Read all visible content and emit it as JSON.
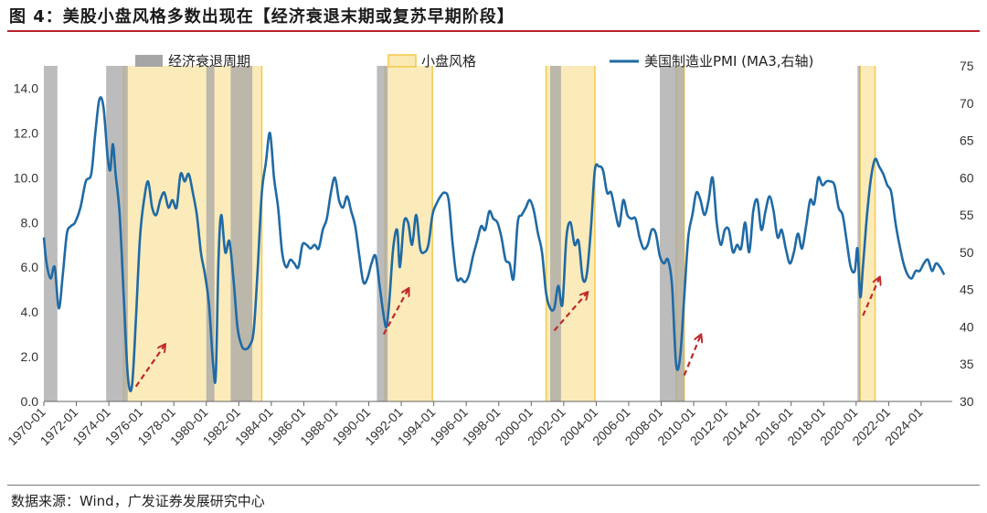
{
  "title": "图 4：美股小盘风格多数出现在【经济衰退末期或复苏早期阶段】",
  "source": "数据来源：Wind，广发证券发展研究中心",
  "colors": {
    "recession": "#a6a6a6",
    "small_cap_fill": "#fbe9b3",
    "small_cap_border": "#f2c94c",
    "pmi_line": "#1f6aa5",
    "arrow": "#c0282a",
    "title_rule": "#b8232e"
  },
  "chart_data": {
    "type": "line",
    "x_axis": {
      "range": [
        "1970-01",
        "2025-12"
      ]
    },
    "y_left": {
      "range": [
        0,
        15
      ],
      "ticks": [
        "0.0",
        "2.0",
        "4.0",
        "6.0",
        "8.0",
        "10.0",
        "12.0",
        "14.0"
      ]
    },
    "y_right": {
      "range": [
        30,
        75
      ],
      "ticks": [
        "30",
        "35",
        "40",
        "45",
        "50",
        "55",
        "60",
        "65",
        "70",
        "75"
      ]
    },
    "x_ticks": [
      "1970-01",
      "1972-01",
      "1974-01",
      "1976-01",
      "1978-01",
      "1980-01",
      "1982-01",
      "1984-01",
      "1986-01",
      "1988-01",
      "1990-01",
      "1992-01",
      "1994-01",
      "1996-01",
      "1998-01",
      "2000-01",
      "2002-01",
      "2004-01",
      "2006-01",
      "2008-01",
      "2010-01",
      "2012-01",
      "2014-01",
      "2016-01",
      "2018-01",
      "2020-01",
      "2022-01",
      "2024-01"
    ],
    "legend": [
      {
        "key": "recession",
        "label": "经济衰退周期"
      },
      {
        "key": "small_cap",
        "label": "小盘风格"
      },
      {
        "key": "pmi",
        "label": "美国制造业PMI (MA3,右轴)"
      }
    ],
    "recession_periods": [
      [
        "1970-01",
        "1970-11"
      ],
      [
        "1973-11",
        "1975-03"
      ],
      [
        "1980-01",
        "1980-07"
      ],
      [
        "1981-07",
        "1982-11"
      ],
      [
        "1990-07",
        "1991-03"
      ],
      [
        "2001-03",
        "2001-11"
      ],
      [
        "2007-12",
        "2009-06"
      ],
      [
        "2020-02",
        "2020-04"
      ]
    ],
    "small_cap_periods": [
      [
        "1974-12",
        "1983-06"
      ],
      [
        "1991-01",
        "1993-12"
      ],
      [
        "2000-12",
        "2003-12"
      ],
      [
        "2008-12",
        "2009-06"
      ],
      [
        "2020-04",
        "2021-03"
      ]
    ],
    "arrows": [
      {
        "from": [
          "1975-09",
          32.0
        ],
        "to": [
          "1977-06",
          37.5
        ]
      },
      {
        "from": [
          "1990-12",
          39.0
        ],
        "to": [
          "1992-06",
          45.0
        ]
      },
      {
        "from": [
          "2001-06",
          39.5
        ],
        "to": [
          "2003-06",
          44.5
        ]
      },
      {
        "from": [
          "2009-06",
          33.5
        ],
        "to": [
          "2010-06",
          38.8
        ]
      },
      {
        "from": [
          "2020-06",
          41.5
        ],
        "to": [
          "2021-06",
          46.5
        ]
      }
    ],
    "series": [
      {
        "key": "pmi",
        "axis": "right",
        "points": [
          [
            "1970-01",
            52.0
          ],
          [
            "1970-03",
            48.5
          ],
          [
            "1970-06",
            46.5
          ],
          [
            "1970-09",
            48.0
          ],
          [
            "1970-12",
            42.5
          ],
          [
            "1971-03",
            47.0
          ],
          [
            "1971-06",
            52.5
          ],
          [
            "1971-09",
            53.5
          ],
          [
            "1971-12",
            54.0
          ],
          [
            "1972-04",
            56.0
          ],
          [
            "1972-08",
            59.5
          ],
          [
            "1972-12",
            60.5
          ],
          [
            "1973-03",
            66.0
          ],
          [
            "1973-06",
            70.5
          ],
          [
            "1973-09",
            69.5
          ],
          [
            "1973-12",
            63.0
          ],
          [
            "1974-02",
            61.0
          ],
          [
            "1974-04",
            64.5
          ],
          [
            "1974-06",
            60.5
          ],
          [
            "1974-09",
            55.0
          ],
          [
            "1974-12",
            44.0
          ],
          [
            "1975-03",
            33.5
          ],
          [
            "1975-06",
            32.0
          ],
          [
            "1975-09",
            41.0
          ],
          [
            "1975-12",
            52.0
          ],
          [
            "1976-03",
            57.0
          ],
          [
            "1976-06",
            59.5
          ],
          [
            "1976-09",
            56.0
          ],
          [
            "1976-12",
            55.0
          ],
          [
            "1977-03",
            57.0
          ],
          [
            "1977-06",
            58.0
          ],
          [
            "1977-09",
            56.0
          ],
          [
            "1977-12",
            57.0
          ],
          [
            "1978-03",
            56.0
          ],
          [
            "1978-06",
            60.5
          ],
          [
            "1978-09",
            59.5
          ],
          [
            "1978-12",
            60.5
          ],
          [
            "1979-03",
            58.0
          ],
          [
            "1979-06",
            55.0
          ],
          [
            "1979-09",
            50.0
          ],
          [
            "1979-12",
            47.0
          ],
          [
            "1980-03",
            43.0
          ],
          [
            "1980-06",
            35.0
          ],
          [
            "1980-08",
            33.5
          ],
          [
            "1980-10",
            49.0
          ],
          [
            "1980-12",
            55.0
          ],
          [
            "1981-03",
            50.0
          ],
          [
            "1981-06",
            51.5
          ],
          [
            "1981-09",
            46.5
          ],
          [
            "1981-12",
            40.0
          ],
          [
            "1982-03",
            37.5
          ],
          [
            "1982-06",
            37.0
          ],
          [
            "1982-09",
            37.5
          ],
          [
            "1982-12",
            39.5
          ],
          [
            "1983-03",
            48.0
          ],
          [
            "1983-06",
            58.0
          ],
          [
            "1983-09",
            62.0
          ],
          [
            "1983-12",
            66.0
          ],
          [
            "1984-03",
            60.0
          ],
          [
            "1984-06",
            56.0
          ],
          [
            "1984-09",
            50.0
          ],
          [
            "1984-12",
            48.0
          ],
          [
            "1985-03",
            49.0
          ],
          [
            "1985-06",
            48.5
          ],
          [
            "1985-09",
            48.0
          ],
          [
            "1985-12",
            51.0
          ],
          [
            "1986-03",
            51.0
          ],
          [
            "1986-06",
            50.5
          ],
          [
            "1986-09",
            51.0
          ],
          [
            "1986-12",
            50.5
          ],
          [
            "1987-03",
            53.0
          ],
          [
            "1987-06",
            54.5
          ],
          [
            "1987-09",
            58.0
          ],
          [
            "1987-12",
            60.0
          ],
          [
            "1988-03",
            57.0
          ],
          [
            "1988-06",
            56.0
          ],
          [
            "1988-09",
            57.5
          ],
          [
            "1988-12",
            55.5
          ],
          [
            "1989-03",
            53.5
          ],
          [
            "1989-06",
            49.5
          ],
          [
            "1989-09",
            46.0
          ],
          [
            "1989-12",
            46.5
          ],
          [
            "1990-03",
            48.5
          ],
          [
            "1990-06",
            49.5
          ],
          [
            "1990-09",
            45.5
          ],
          [
            "1990-12",
            41.5
          ],
          [
            "1991-02",
            40.0
          ],
          [
            "1991-04",
            43.0
          ],
          [
            "1991-07",
            50.5
          ],
          [
            "1991-10",
            53.0
          ],
          [
            "1991-12",
            48.0
          ],
          [
            "1992-03",
            54.0
          ],
          [
            "1992-06",
            54.0
          ],
          [
            "1992-09",
            51.0
          ],
          [
            "1992-12",
            55.0
          ],
          [
            "1993-03",
            50.5
          ],
          [
            "1993-06",
            50.0
          ],
          [
            "1993-09",
            51.0
          ],
          [
            "1993-12",
            55.0
          ],
          [
            "1994-03",
            56.5
          ],
          [
            "1994-06",
            57.5
          ],
          [
            "1994-09",
            58.0
          ],
          [
            "1994-12",
            57.0
          ],
          [
            "1995-03",
            51.0
          ],
          [
            "1995-06",
            46.5
          ],
          [
            "1995-09",
            46.5
          ],
          [
            "1995-12",
            46.0
          ],
          [
            "1996-03",
            47.0
          ],
          [
            "1996-06",
            49.5
          ],
          [
            "1996-09",
            51.5
          ],
          [
            "1996-12",
            53.5
          ],
          [
            "1997-03",
            53.0
          ],
          [
            "1997-06",
            55.5
          ],
          [
            "1997-09",
            54.5
          ],
          [
            "1997-12",
            54.0
          ],
          [
            "1998-03",
            52.0
          ],
          [
            "1998-06",
            49.0
          ],
          [
            "1998-09",
            48.5
          ],
          [
            "1998-12",
            46.5
          ],
          [
            "1999-03",
            54.0
          ],
          [
            "1999-06",
            55.0
          ],
          [
            "1999-09",
            56.0
          ],
          [
            "1999-12",
            57.0
          ],
          [
            "2000-03",
            55.5
          ],
          [
            "2000-06",
            52.5
          ],
          [
            "2000-09",
            50.0
          ],
          [
            "2000-12",
            44.5
          ],
          [
            "2001-03",
            42.5
          ],
          [
            "2001-06",
            42.5
          ],
          [
            "2001-09",
            45.5
          ],
          [
            "2001-12",
            43.0
          ],
          [
            "2002-03",
            52.0
          ],
          [
            "2002-06",
            54.0
          ],
          [
            "2002-09",
            51.0
          ],
          [
            "2002-12",
            51.5
          ],
          [
            "2003-03",
            46.5
          ],
          [
            "2003-06",
            47.0
          ],
          [
            "2003-09",
            53.0
          ],
          [
            "2003-12",
            61.0
          ],
          [
            "2004-03",
            61.5
          ],
          [
            "2004-06",
            61.0
          ],
          [
            "2004-09",
            58.0
          ],
          [
            "2004-12",
            58.0
          ],
          [
            "2005-03",
            55.5
          ],
          [
            "2005-06",
            53.5
          ],
          [
            "2005-09",
            57.0
          ],
          [
            "2005-12",
            55.0
          ],
          [
            "2006-03",
            54.5
          ],
          [
            "2006-06",
            54.5
          ],
          [
            "2006-09",
            52.0
          ],
          [
            "2006-12",
            50.5
          ],
          [
            "2007-03",
            51.0
          ],
          [
            "2007-06",
            53.0
          ],
          [
            "2007-09",
            52.5
          ],
          [
            "2007-12",
            49.5
          ],
          [
            "2008-03",
            48.5
          ],
          [
            "2008-06",
            49.0
          ],
          [
            "2008-09",
            45.5
          ],
          [
            "2008-12",
            35.0
          ],
          [
            "2009-03",
            36.0
          ],
          [
            "2009-06",
            44.0
          ],
          [
            "2009-09",
            52.0
          ],
          [
            "2009-12",
            55.0
          ],
          [
            "2010-03",
            58.0
          ],
          [
            "2010-06",
            57.0
          ],
          [
            "2010-09",
            55.0
          ],
          [
            "2010-12",
            57.0
          ],
          [
            "2011-03",
            60.0
          ],
          [
            "2011-06",
            54.0
          ],
          [
            "2011-09",
            51.0
          ],
          [
            "2011-12",
            53.0
          ],
          [
            "2012-03",
            53.0
          ],
          [
            "2012-06",
            50.0
          ],
          [
            "2012-09",
            51.0
          ],
          [
            "2012-12",
            50.5
          ],
          [
            "2013-03",
            54.0
          ],
          [
            "2013-06",
            50.0
          ],
          [
            "2013-09",
            55.5
          ],
          [
            "2013-12",
            57.0
          ],
          [
            "2014-03",
            53.0
          ],
          [
            "2014-06",
            55.5
          ],
          [
            "2014-09",
            57.5
          ],
          [
            "2014-12",
            55.5
          ],
          [
            "2015-03",
            52.0
          ],
          [
            "2015-06",
            53.0
          ],
          [
            "2015-09",
            50.5
          ],
          [
            "2015-12",
            48.5
          ],
          [
            "2016-03",
            50.0
          ],
          [
            "2016-06",
            52.5
          ],
          [
            "2016-09",
            50.5
          ],
          [
            "2016-12",
            53.5
          ],
          [
            "2017-03",
            57.0
          ],
          [
            "2017-06",
            56.5
          ],
          [
            "2017-09",
            60.0
          ],
          [
            "2017-12",
            59.0
          ],
          [
            "2018-03",
            59.5
          ],
          [
            "2018-06",
            59.5
          ],
          [
            "2018-09",
            59.0
          ],
          [
            "2018-12",
            56.0
          ],
          [
            "2019-03",
            55.0
          ],
          [
            "2019-06",
            51.5
          ],
          [
            "2019-09",
            48.0
          ],
          [
            "2019-12",
            47.5
          ],
          [
            "2020-02",
            50.5
          ],
          [
            "2020-04",
            44.0
          ],
          [
            "2020-06",
            48.0
          ],
          [
            "2020-09",
            55.0
          ],
          [
            "2020-12",
            60.0
          ],
          [
            "2021-03",
            62.5
          ],
          [
            "2021-06",
            61.5
          ],
          [
            "2021-09",
            60.5
          ],
          [
            "2021-12",
            59.0
          ],
          [
            "2022-03",
            58.0
          ],
          [
            "2022-06",
            54.0
          ],
          [
            "2022-09",
            51.0
          ],
          [
            "2022-12",
            48.5
          ],
          [
            "2023-03",
            47.0
          ],
          [
            "2023-06",
            46.5
          ],
          [
            "2023-09",
            47.5
          ],
          [
            "2023-12",
            47.5
          ],
          [
            "2024-03",
            48.5
          ],
          [
            "2024-06",
            49.0
          ],
          [
            "2024-09",
            47.5
          ],
          [
            "2024-12",
            48.5
          ],
          [
            "2025-03",
            48.0
          ],
          [
            "2025-06",
            47.0
          ]
        ]
      }
    ]
  }
}
